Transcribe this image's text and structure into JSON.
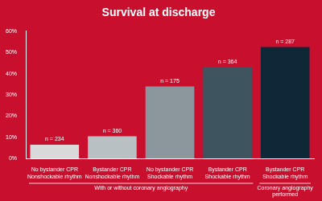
{
  "chart_data": {
    "type": "bar",
    "title": "Survival at discharge",
    "categories": [
      [
        "No bystander CPR",
        "Nonshockable rhythm"
      ],
      [
        "Bystander CPR",
        "Nonshockable rhythm"
      ],
      [
        "No bystander CPR",
        "Shockable rhythm"
      ],
      [
        "Bystander CPR",
        "Shockable rhythm"
      ],
      [
        "Bystander CPR",
        "Shockable rhythm"
      ]
    ],
    "category_groups": [
      "With or without coronary angiography",
      "With or without coronary angiography",
      "With or without coronary angiography",
      "With or without coronary angiography",
      "Coronary angiography performed"
    ],
    "values": [
      6.5,
      10.5,
      34,
      43,
      52.5
    ],
    "colors": [
      "#d9d9d9",
      "#b9c0c4",
      "#8b979d",
      "#3e5560",
      "#0f2838"
    ],
    "annotations": [
      "n = 234",
      "n = 360",
      "n = 175",
      "n = 364",
      "n = 287"
    ],
    "ylim": [
      0,
      60
    ],
    "yticks": [
      {
        "value": 0,
        "label": "0%"
      },
      {
        "value": 10,
        "label": "10%"
      },
      {
        "value": 20,
        "label": "20%"
      },
      {
        "value": 30,
        "label": "30%"
      },
      {
        "value": 40,
        "label": "40%"
      },
      {
        "value": 50,
        "label": "50%"
      },
      {
        "value": 60,
        "label": "60%"
      }
    ],
    "grid": false
  }
}
